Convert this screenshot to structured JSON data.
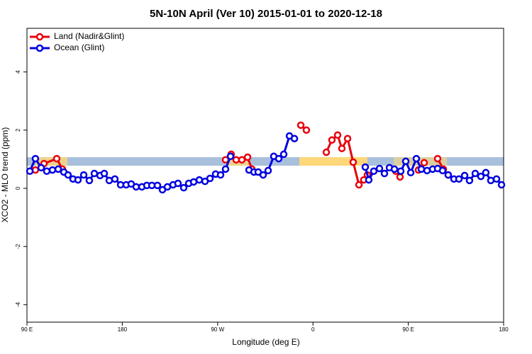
{
  "chart_data": {
    "type": "line",
    "title": "5N-10N April (Ver 10)   2015-01-01 to 2020-12-18",
    "xlabel": "Longitude (deg E)",
    "ylabel": "XCO2 - MLO trend (ppm)",
    "xlim": [
      90,
      540
    ],
    "ylim": [
      -4.6,
      5.5
    ],
    "xticks": [
      {
        "value": 90,
        "label": "90 E"
      },
      180,
      {
        "value": 270,
        "label": "90 W"
      },
      {
        "value": 360,
        "label": "0"
      },
      {
        "value": 450,
        "label": "90 E"
      },
      {
        "value": 540,
        "label": "180"
      }
    ],
    "yticks": [
      -4,
      -2,
      0,
      2,
      4
    ],
    "legend": "top-left",
    "series": [
      {
        "name": "Land (Nadir&Glint)",
        "color": "#e8000b",
        "x": [
          98.0,
          106.1,
          118.1,
          123.5,
          null,
          277.5,
          282.8,
          287.5,
          292.9,
          298.3,
          302.3,
          null,
          348.5,
          353.8,
          null,
          372.6,
          377.9,
          383.3,
          387.3,
          392.7,
          398.0,
          403.4,
          408.0,
          411.4,
          null,
          438.2,
          442.2,
          null,
          459.6,
          465.0,
          null,
          477.7,
          483.1,
          487.7
        ],
        "values": [
          0.63,
          0.85,
          1.02,
          0.66,
          null,
          0.98,
          1.17,
          0.98,
          0.98,
          1.07,
          0.66,
          null,
          2.17,
          2.0,
          null,
          1.24,
          1.66,
          1.83,
          1.37,
          1.71,
          0.9,
          0.12,
          0.29,
          0.46,
          null,
          0.59,
          0.39,
          null,
          0.63,
          0.88,
          null,
          1.02,
          0.66,
          0.46
        ]
      },
      {
        "name": "Ocean (Glint)",
        "color": "#0000e0",
        "x": [
          92.7,
          98.0,
          103.4,
          108.7,
          114.1,
          119.5,
          124.8,
          128.8,
          133.5,
          138.2,
          143.6,
          148.9,
          153.6,
          159.0,
          163.0,
          167.7,
          173.0,
          178.4,
          183.7,
          188.4,
          193.1,
          198.5,
          203.2,
          207.9,
          213.2,
          217.9,
          222.6,
          227.9,
          232.6,
          238.0,
          242.7,
          247.4,
          252.7,
          258.1,
          262.8,
          268.1,
          272.8,
          277.5,
          282.2,
          null,
          299.6,
          304.3,
          308.3,
          313.0,
          317.7,
          323.0,
          327.7,
          332.4,
          337.8,
          342.5,
          null,
          409.4,
          412.7,
          417.4,
          422.8,
          427.5,
          432.2,
          436.9,
          442.9,
          447.6,
          452.3,
          457.6,
          462.3,
          467.7,
          473.0,
          477.7,
          482.4,
          487.7,
          493.1,
          497.8,
          503.2,
          507.8,
          513.2,
          518.5,
          523.2,
          527.9,
          533.3,
          538.0
        ],
        "values": [
          0.59,
          1.02,
          0.71,
          0.59,
          0.63,
          0.66,
          0.56,
          0.46,
          0.32,
          0.29,
          0.46,
          0.27,
          0.51,
          0.44,
          0.51,
          0.27,
          0.32,
          0.12,
          0.12,
          0.15,
          0.05,
          0.05,
          0.1,
          0.1,
          0.1,
          -0.05,
          0.05,
          0.12,
          0.17,
          0.02,
          0.17,
          0.22,
          0.29,
          0.24,
          0.34,
          0.49,
          0.46,
          0.66,
          1.1,
          null,
          0.63,
          0.56,
          0.56,
          0.46,
          0.61,
          1.1,
          1.02,
          1.17,
          1.8,
          1.71,
          null,
          0.73,
          0.29,
          0.59,
          0.68,
          0.51,
          0.71,
          0.66,
          0.59,
          0.93,
          0.54,
          1.02,
          0.66,
          0.61,
          0.66,
          0.68,
          0.61,
          0.46,
          0.32,
          0.32,
          0.44,
          0.27,
          0.51,
          0.41,
          0.54,
          0.27,
          0.32,
          0.12
        ]
      }
    ]
  }
}
